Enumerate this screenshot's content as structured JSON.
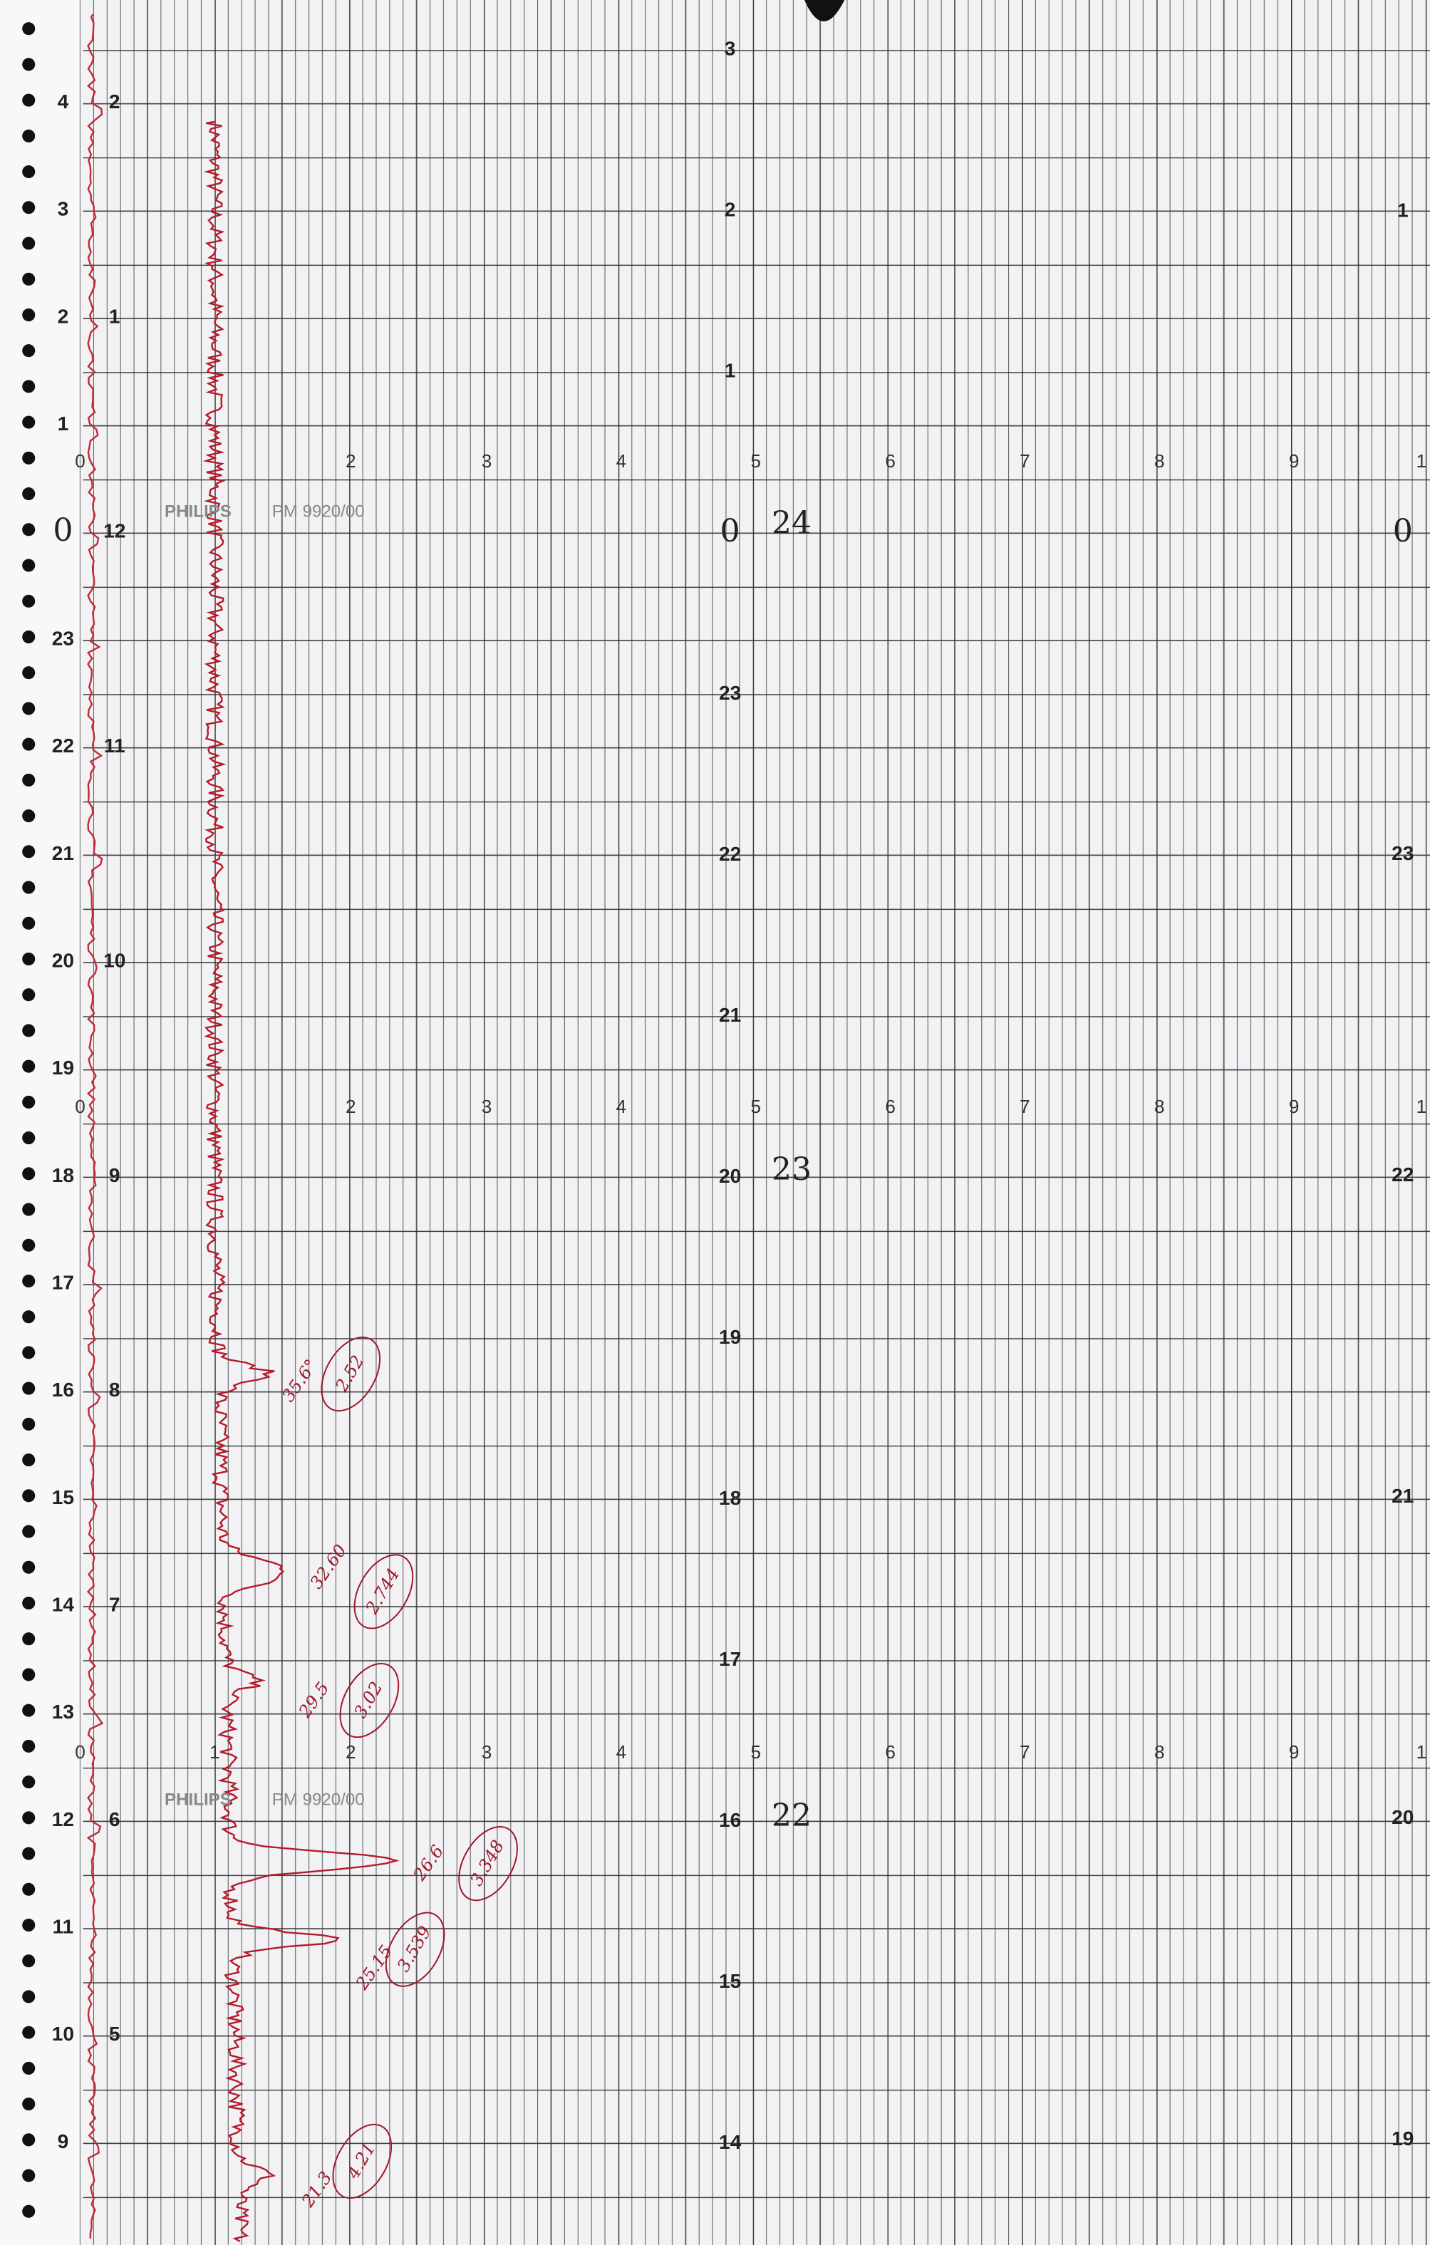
{
  "left_column": [
    "4",
    "3",
    "2",
    "1",
    "0",
    "23",
    "22",
    "21",
    "20",
    "19",
    "18",
    "17",
    "16",
    "15",
    "14",
    "13",
    "12",
    "11",
    "10",
    "9"
  ],
  "second_column": [
    "2",
    "1",
    "12",
    "11",
    "10",
    "9",
    "8",
    "7",
    "6",
    "5"
  ],
  "center_column": [
    "3",
    "2",
    "1",
    "0",
    "23",
    "22",
    "21",
    "20",
    "19",
    "18",
    "17",
    "16",
    "15",
    "14"
  ],
  "right_column": [
    "1",
    "0",
    "23",
    "22",
    "21",
    "20",
    "19"
  ],
  "day_marks": [
    "24",
    "23",
    "22"
  ],
  "scale_rows": [
    [
      "0",
      "2",
      "3",
      "4",
      "5",
      "6",
      "7",
      "8",
      "9",
      "1"
    ],
    [
      "0",
      "2",
      "3",
      "4",
      "5",
      "6",
      "7",
      "8",
      "9",
      "1"
    ],
    [
      "0",
      "1",
      "2",
      "3",
      "4",
      "5",
      "6",
      "7",
      "8",
      "9",
      "1"
    ]
  ],
  "brand": [
    {
      "name": "PHILIPS",
      "model": "PM 9920/00"
    },
    {
      "name": "PHILIPS",
      "model": "PM 9920/00"
    }
  ],
  "annotations": [
    {
      "value": "2.52",
      "angle": "35.6°"
    },
    {
      "value": "2.744",
      "angle": "32.60"
    },
    {
      "value": "3.02",
      "angle": "29.5"
    },
    {
      "value": "3.348",
      "angle": "26.6"
    },
    {
      "value": "3.539",
      "angle": "25.15"
    },
    {
      "value": "4.21",
      "angle": "21.3"
    }
  ]
}
